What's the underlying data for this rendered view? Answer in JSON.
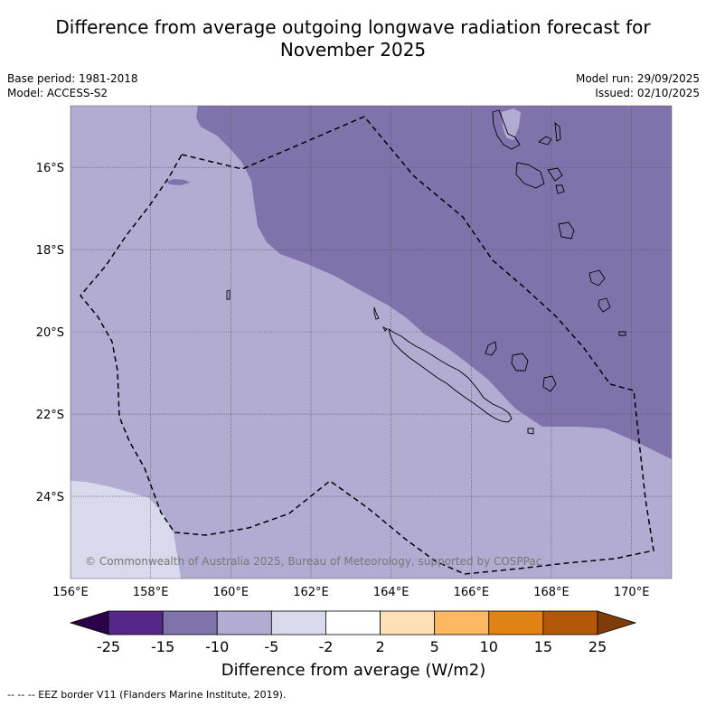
{
  "header": {
    "title_line1": "Difference from average outgoing longwave radiation forecast for",
    "title_line2": "November 2025",
    "base_period": "Base period: 1981-2018",
    "model": "Model: ACCESS-S2",
    "model_run": "Model run: 29/09/2025",
    "issued": "Issued: 02/10/2025"
  },
  "chart_data": {
    "type": "heatmap",
    "title": "Difference from average outgoing longwave radiation forecast for November 2025",
    "map_extent": {
      "lon": [
        156,
        171
      ],
      "lat": [
        -26.0,
        -14.5
      ]
    },
    "x_ticks": [
      {
        "value": 156,
        "label": "156°E"
      },
      {
        "value": 158,
        "label": "158°E"
      },
      {
        "value": 160,
        "label": "160°E"
      },
      {
        "value": 162,
        "label": "162°E"
      },
      {
        "value": 164,
        "label": "164°E"
      },
      {
        "value": 166,
        "label": "166°E"
      },
      {
        "value": 168,
        "label": "168°E"
      },
      {
        "value": 170,
        "label": "170°E"
      }
    ],
    "y_ticks": [
      {
        "value": -16,
        "label": "16°S"
      },
      {
        "value": -18,
        "label": "18°S"
      },
      {
        "value": -20,
        "label": "20°S"
      },
      {
        "value": -22,
        "label": "22°S"
      },
      {
        "value": -24,
        "label": "24°S"
      }
    ],
    "colorbar": {
      "label": "Difference from average (W/m2)",
      "tick_labels": [
        "-25",
        "-15",
        "-10",
        "-5",
        "-2",
        "2",
        "5",
        "10",
        "15",
        "25"
      ],
      "bins": [
        {
          "range": "< -25",
          "color": "#2d004b"
        },
        {
          "range": "-25 to -15",
          "color": "#542788"
        },
        {
          "range": "-15 to -10",
          "color": "#8073ac"
        },
        {
          "range": "-10 to -5",
          "color": "#b2abd2"
        },
        {
          "range": "-5 to -2",
          "color": "#d8daeb"
        },
        {
          "range": "-2 to 2",
          "color": "#ffffff"
        },
        {
          "range": "2 to 5",
          "color": "#fee0b6"
        },
        {
          "range": "5 to 10",
          "color": "#fdb863"
        },
        {
          "range": "10 to 15",
          "color": "#e08214"
        },
        {
          "range": "15 to 25",
          "color": "#b35806"
        },
        {
          "range": "> 25",
          "color": "#7f3b08"
        }
      ]
    },
    "regions": [
      {
        "category": "-15 to -10",
        "color": "#8073ac",
        "area": "north-east (Vanuatu, Loyalty Islands)"
      },
      {
        "category": "-10 to -5",
        "color": "#b2abd2",
        "area": "central and west (New Caledonia)"
      },
      {
        "category": "-5 to -2",
        "color": "#d8daeb",
        "area": "south-west corner"
      }
    ],
    "copyright": "© Commonwealth of Australia 2025, Bureau of Meteorology, supported by COSPPac",
    "legend_note": "-- -- -- EEZ border V11 (Flanders Marine Institute, 2019)."
  }
}
